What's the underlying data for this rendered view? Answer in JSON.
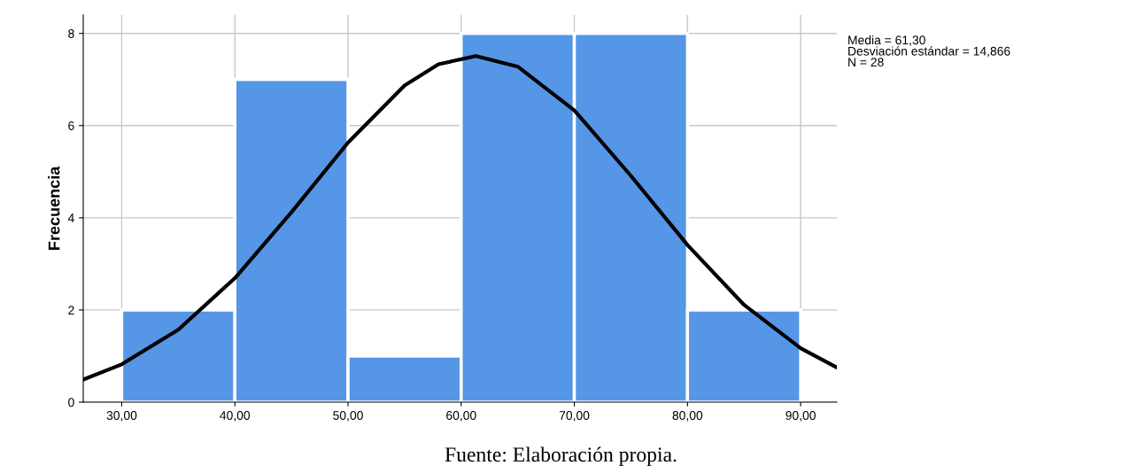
{
  "chart_data": {
    "type": "histogram",
    "ylabel": "Frecuencia",
    "bins": [
      30,
      40,
      50,
      60,
      70,
      80,
      90
    ],
    "values": [
      2,
      7,
      1,
      8,
      8,
      2
    ],
    "color": "#5596e6",
    "series": [
      {
        "type": "line",
        "color": "#000000",
        "x": [
          26.6,
          30,
          35,
          40,
          45,
          50,
          55,
          58,
          61.3,
          65,
          70,
          75,
          80,
          85,
          90,
          93.2
        ],
        "values": [
          0.49,
          0.82,
          1.57,
          2.69,
          4.12,
          5.63,
          6.87,
          7.33,
          7.51,
          7.28,
          6.33,
          4.91,
          3.41,
          2.11,
          1.17,
          0.75
        ]
      }
    ],
    "xlim": [
      26.6,
      93.2
    ],
    "ylim": [
      0,
      8.4
    ],
    "xticks": [
      {
        "value": 30,
        "label": "30,00"
      },
      {
        "value": 40,
        "label": "40,00"
      },
      {
        "value": 50,
        "label": "50,00"
      },
      {
        "value": 60,
        "label": "60,00"
      },
      {
        "value": 70,
        "label": "70,00"
      },
      {
        "value": 80,
        "label": "80,00"
      },
      {
        "value": 90,
        "label": "90,00"
      }
    ],
    "yticks": [
      0,
      2,
      4,
      6,
      8
    ],
    "grid": true,
    "annotations": [
      "Media = 61,30\nDesviación estándar = 14,866\nN = 28",
      "Fuente: Elaboración propia."
    ]
  }
}
